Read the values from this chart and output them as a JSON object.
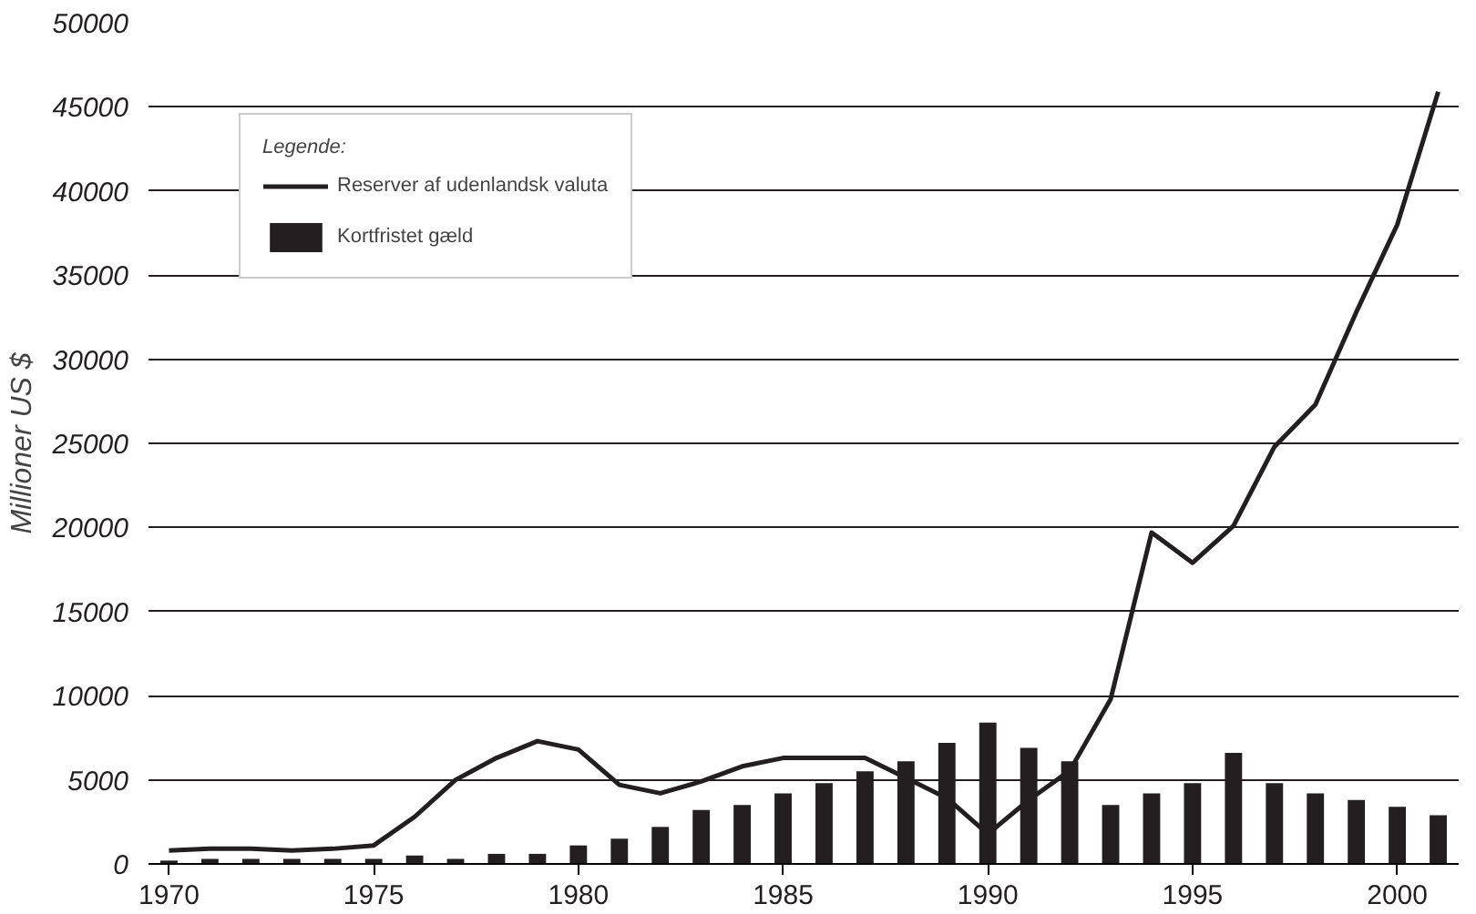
{
  "chart_data": {
    "type": "bar",
    "ylabel": "Millioner US $",
    "legend_title": "Legende:",
    "x": [
      1970,
      1971,
      1972,
      1973,
      1974,
      1975,
      1976,
      1977,
      1978,
      1979,
      1980,
      1981,
      1982,
      1983,
      1984,
      1985,
      1986,
      1987,
      1988,
      1989,
      1990,
      1991,
      1992,
      1993,
      1994,
      1995,
      1996,
      1997,
      1998,
      1999,
      2000,
      2001
    ],
    "series": [
      {
        "name": "Reserver af udenlandsk valuta",
        "type": "line",
        "color": "#231f20",
        "values": [
          800,
          900,
          900,
          800,
          900,
          1100,
          2800,
          5000,
          6300,
          7300,
          6800,
          4700,
          4200,
          4900,
          5800,
          6300,
          6300,
          6300,
          5110,
          3910,
          1780,
          3800,
          5540,
          9800,
          19700,
          17900,
          20100,
          24800,
          27300,
          32800,
          38000,
          45900
        ]
      },
      {
        "name": "Kortfristet gæld",
        "color": "#231f20",
        "values": [
          200,
          300,
          300,
          300,
          300,
          300,
          500,
          300,
          600,
          600,
          1100,
          1500,
          2200,
          3200,
          3500,
          4200,
          4800,
          5500,
          6100,
          7200,
          8400,
          6900,
          6100,
          3500,
          4200,
          4800,
          6600,
          4800,
          4200,
          3800,
          3400,
          2900
        ]
      }
    ],
    "xlim": [
      1969.5,
      2001.5
    ],
    "xticks": [
      1970,
      1975,
      1980,
      1985,
      1990,
      1995,
      2000
    ],
    "ylim": [
      0,
      50000
    ],
    "yticks": [
      0,
      5000,
      10000,
      15000,
      20000,
      25000,
      30000,
      35000,
      40000,
      45000,
      50000
    ],
    "grid": "y",
    "legend": "top left"
  }
}
